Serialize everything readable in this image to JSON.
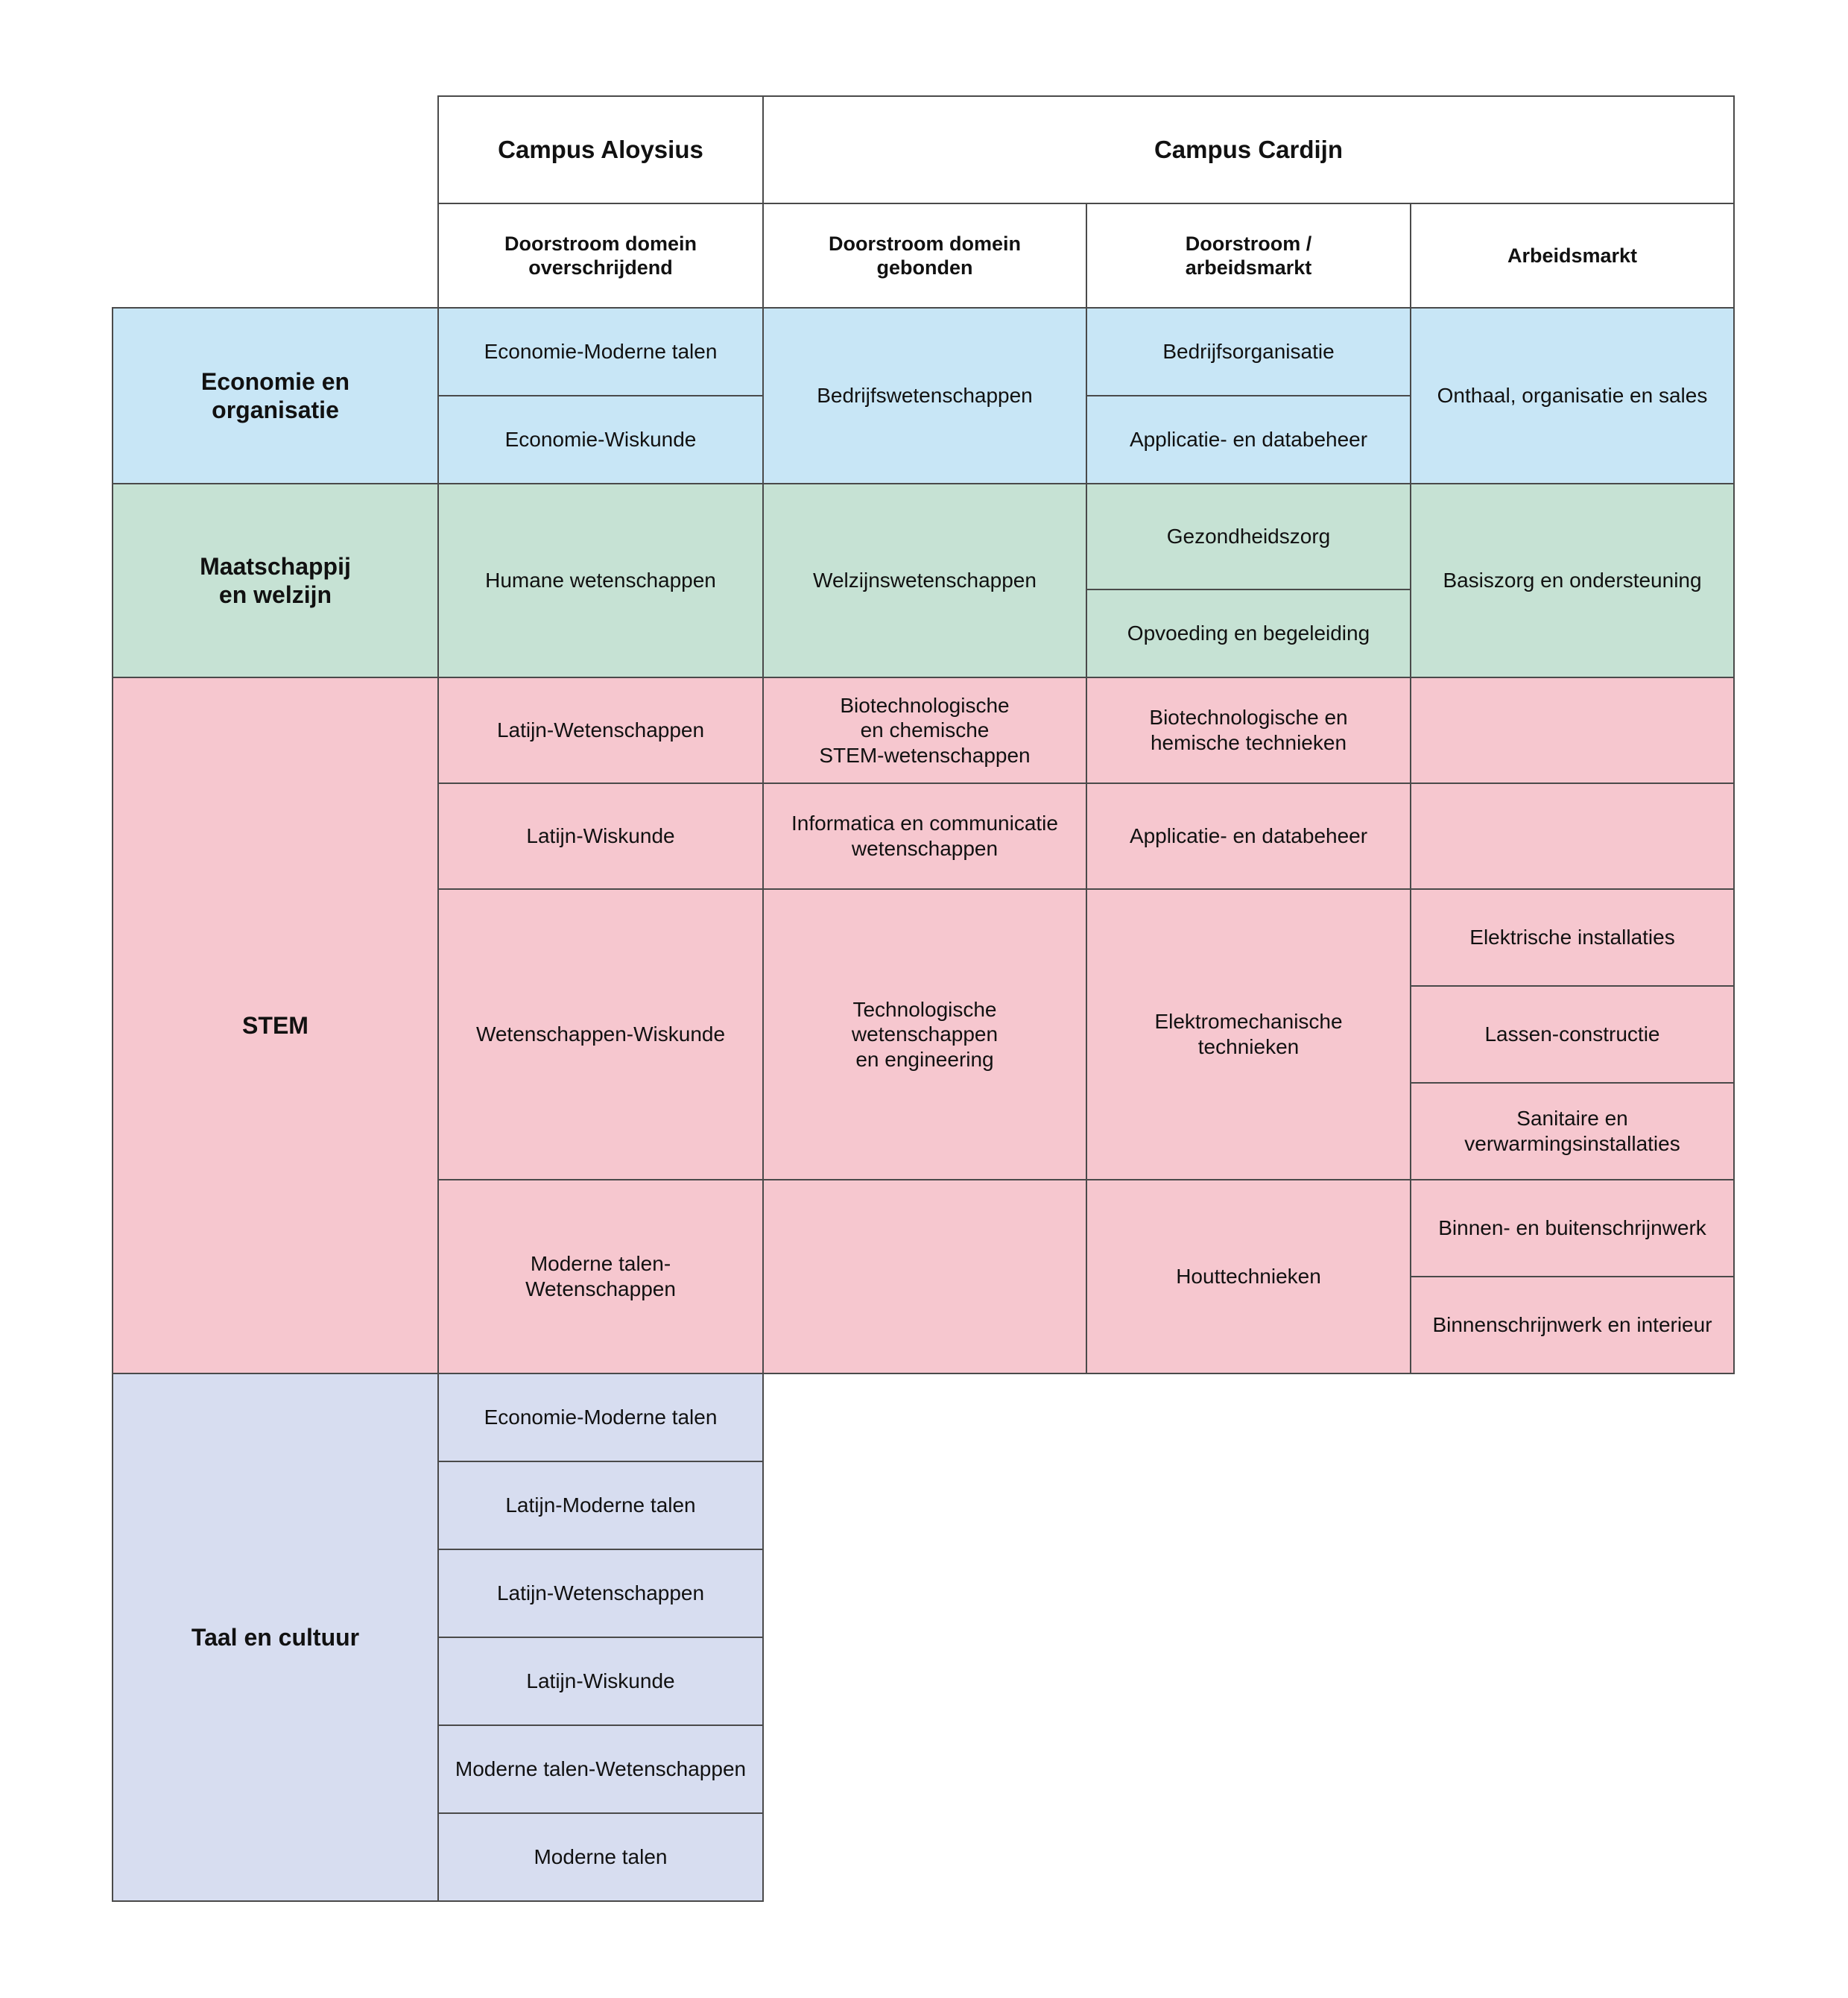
{
  "header": {
    "campus_aloysius": "Campus Aloysius",
    "campus_cardijn": "Campus Cardijn",
    "columns": [
      "Doorstroom domein\noverschrijdend",
      "Doorstroom domein\ngebonden",
      "Doorstroom /\narbeidsmarkt",
      "Arbeidsmarkt"
    ]
  },
  "colors": {
    "economie": "#c8e6f6",
    "maatschappij": "#c6e2d4",
    "stem": "#f6c7cf",
    "taal": "#d7ddf0"
  },
  "economie": {
    "domain": "Economie en\norganisatie",
    "col1": [
      "Economie-Moderne talen",
      "Economie-Wiskunde"
    ],
    "col2": "Bedrijfswetenschappen",
    "col3": [
      "Bedrijfsorganisatie",
      "Applicatie- en databeheer"
    ],
    "col4": "Onthaal, organisatie en sales"
  },
  "maatschappij": {
    "domain": "Maatschappij\nen welzijn",
    "col1": "Humane wetenschappen",
    "col2": "Welzijnswetenschappen",
    "col3": [
      "Gezondheidszorg",
      "Opvoeding en begeleiding"
    ],
    "col4": "Basiszorg en ondersteuning"
  },
  "stem": {
    "domain": "STEM",
    "col1": [
      "Latijn-Wetenschappen",
      "Latijn-Wiskunde",
      "Wetenschappen-Wiskunde",
      "Moderne talen-\nWetenschappen"
    ],
    "col2": [
      "Biotechnologische\nen chemische\nSTEM-wetenschappen",
      "Informatica en communicatie\nwetenschappen",
      "Technologische\nwetenschappen\nen engineering",
      ""
    ],
    "col3": [
      "Biotechnologische en\nhemische technieken",
      "Applicatie- en databeheer",
      "Elektromechanische\ntechnieken",
      "Houttechnieken"
    ],
    "col4": [
      "",
      "",
      "Elektrische installaties",
      "Lassen-constructie",
      "Sanitaire en\nverwarmingsinstallaties",
      "Binnen- en buitenschrijnwerk",
      "Binnenschrijnwerk en interieur"
    ]
  },
  "taal": {
    "domain": "Taal en cultuur",
    "col1": [
      "Economie-Moderne talen",
      "Latijn-Moderne talen",
      "Latijn-Wetenschappen",
      "Latijn-Wiskunde",
      "Moderne talen-Wetenschappen",
      "Moderne talen"
    ]
  }
}
